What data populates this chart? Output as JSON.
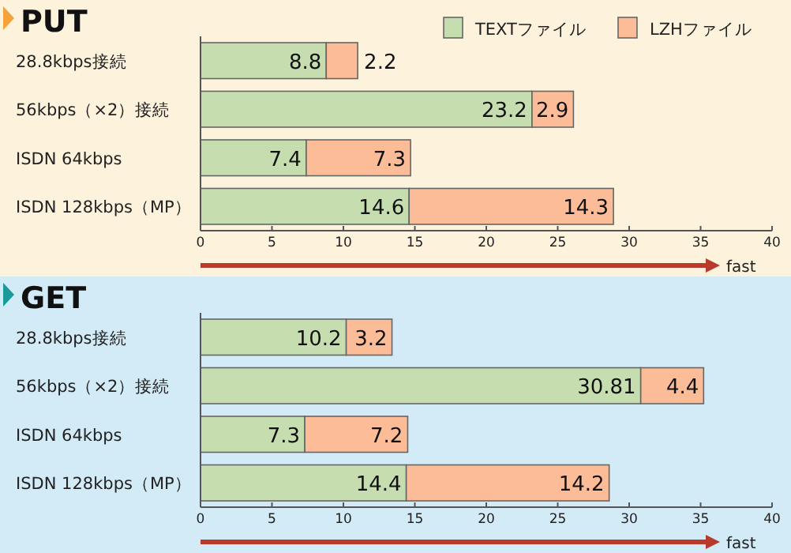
{
  "chart_data": [
    {
      "type": "bar",
      "title": "PUT",
      "orientation": "horizontal",
      "stacked": true,
      "categories": [
        "28.8kbps接続",
        "56kbps（×2）接続",
        "ISDN 64kbps",
        "ISDN 128kbps（MP）"
      ],
      "series": [
        {
          "name": "TEXTファイル",
          "color": "#c6ddb0",
          "values": [
            8.8,
            23.2,
            7.4,
            14.6
          ]
        },
        {
          "name": "LZHファイル",
          "color": "#fdbc98",
          "values": [
            2.2,
            2.9,
            7.3,
            14.3
          ]
        }
      ],
      "xlim": [
        0,
        40
      ],
      "xticks": [
        0,
        5,
        10,
        15,
        20,
        25,
        30,
        35,
        40
      ],
      "data_labels": true,
      "legend": "top right",
      "grid": false,
      "annotations": [
        "fast"
      ]
    },
    {
      "type": "bar",
      "title": "GET",
      "orientation": "horizontal",
      "stacked": true,
      "categories": [
        "28.8kbps接続",
        "56kbps（×2）接続",
        "ISDN 64kbps",
        "ISDN 128kbps（MP）"
      ],
      "series": [
        {
          "color": "#c6ddb0",
          "values": [
            10.2,
            30.81,
            7.3,
            14.4
          ]
        },
        {
          "color": "#fdbc98",
          "values": [
            3.2,
            4.4,
            7.2,
            14.2
          ]
        }
      ],
      "xlim": [
        0,
        40
      ],
      "xticks": [
        0,
        5,
        10,
        15,
        20,
        25,
        30,
        35,
        40
      ],
      "data_labels": true,
      "grid": false,
      "annotations": [
        "fast"
      ]
    }
  ]
}
